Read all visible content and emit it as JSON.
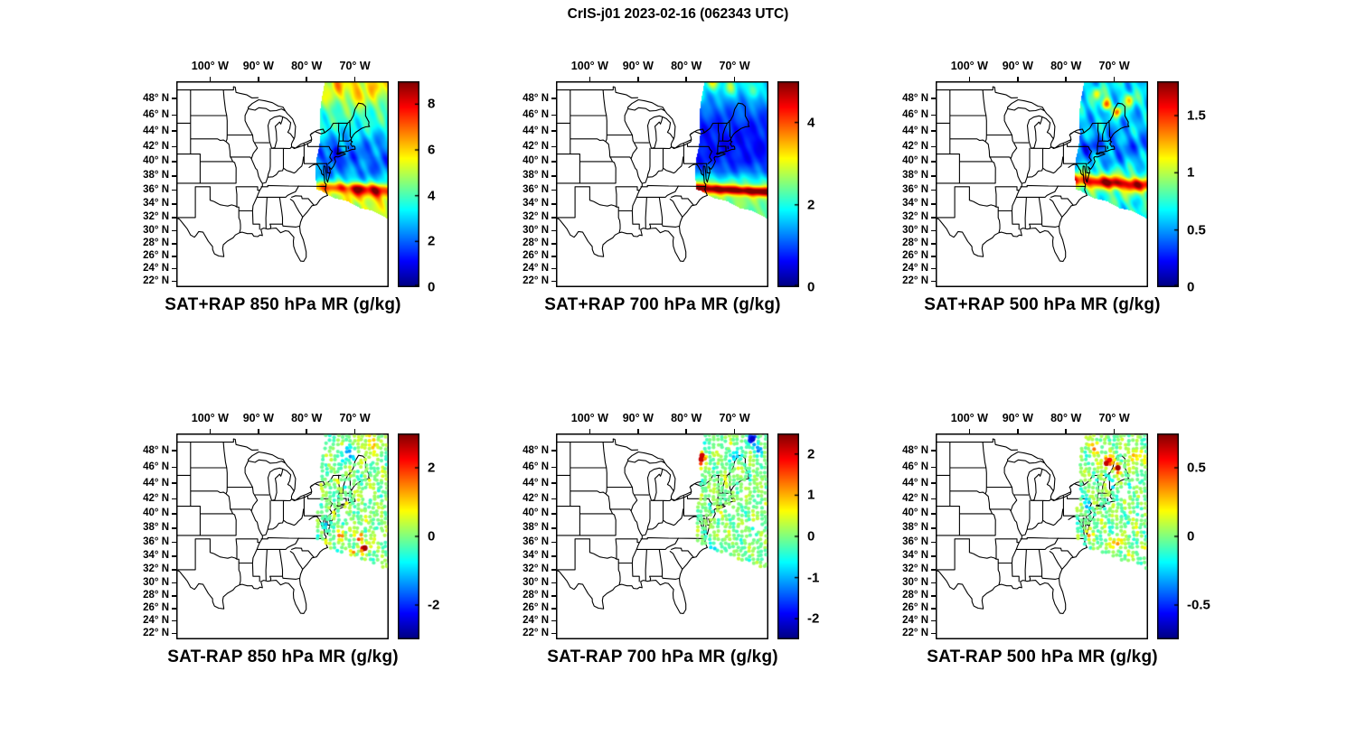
{
  "figure": {
    "title": "CrIS-j01 2023-02-16 (062343 UTC)"
  },
  "colors": {
    "background": "#ffffff",
    "outline": "#000000",
    "text": "#000000",
    "colormap_jet_stops": [
      "#000080",
      "#0000ff",
      "#00ffff",
      "#ffff00",
      "#ff0000",
      "#800000"
    ],
    "colormap_jet_positions": [
      0,
      0.125,
      0.375,
      0.625,
      0.875,
      1
    ]
  },
  "axes": {
    "lon_tick_labels": [
      "100° W",
      "90° W",
      "80° W",
      "70° W"
    ],
    "lon_tick_deg_west": [
      100,
      90,
      80,
      70
    ],
    "lat_tick_labels": [
      "48° N",
      "46° N",
      "44° N",
      "42° N",
      "40° N",
      "38° N",
      "36° N",
      "34° N",
      "32° N",
      "30° N",
      "28° N",
      "26° N",
      "24° N",
      "22° N"
    ],
    "lat_tick_deg_north": [
      48,
      46,
      44,
      42,
      40,
      38,
      36,
      34,
      32,
      30,
      28,
      26,
      24,
      22
    ]
  },
  "chart_data": {
    "type": "heatmap",
    "title": "CrIS-j01 2023-02-16 (062343 UTC)",
    "colormap": "jet",
    "projection": "mercator",
    "map_extent": {
      "lon_west_deg": [
        107,
        63
      ],
      "lat_north_deg": [
        21,
        50
      ]
    },
    "satellite_swath": {
      "description": "Slanted CrIS overpass swath covering the northeastern US and the western Atlantic",
      "lon_west_deg": [
        79,
        62
      ],
      "lat_north_deg": [
        32,
        50
      ]
    },
    "panels": [
      {
        "position": "top-left",
        "title": "SAT+RAP 850 hPa MR (g/kg)",
        "variable": "850 hPa water vapor mixing ratio (satellite + RAP)",
        "units": "g/kg",
        "style": "filled swath",
        "colorbar": {
          "min": 0,
          "max": 9,
          "ticks": [
            0,
            2,
            4,
            6,
            8
          ],
          "tick_labels": [
            "0",
            "2",
            "4",
            "6",
            "8"
          ]
        },
        "features": [
          "high-MR band of 6-9 g/kg along ~36°N off the mid-Atlantic coast",
          "dry dark-blue pocket near New Jersey / New York",
          "2-4 g/kg over most of the rest of the swath"
        ]
      },
      {
        "position": "top-middle",
        "title": "SAT+RAP 700 hPa MR (g/kg)",
        "variable": "700 hPa water vapor mixing ratio (satellite + RAP)",
        "units": "g/kg",
        "style": "filled swath",
        "colorbar": {
          "min": 0,
          "max": 5,
          "ticks": [
            0,
            2,
            4
          ],
          "tick_labels": [
            "0",
            "2",
            "4"
          ]
        },
        "features": [
          "intense dark-red moist band (~5 g/kg) along ~36°N",
          "mostly 0.5-1.5 g/kg elsewhere in the swath"
        ]
      },
      {
        "position": "top-right",
        "title": "SAT+RAP 500 hPa MR (g/kg)",
        "variable": "500 hPa water vapor mixing ratio (satellite + RAP)",
        "units": "g/kg",
        "style": "filled swath",
        "colorbar": {
          "min": 0,
          "max": 1.8,
          "ticks": [
            0,
            0.5,
            1,
            1.5
          ],
          "tick_labels": [
            "0",
            "0.5",
            "1",
            "1.5"
          ]
        },
        "features": [
          "moist band (~1.5 g/kg) near 37°N",
          "patchy maxima over northern New England / Quebec"
        ]
      },
      {
        "position": "bottom-left",
        "title": "SAT-RAP 850 hPa MR (g/kg)",
        "variable": "850 hPa mixing ratio difference (satellite minus RAP)",
        "units": "g/kg",
        "style": "footprint dots",
        "colorbar": {
          "min": -3,
          "max": 3,
          "ticks": [
            -2,
            0,
            2
          ],
          "tick_labels": [
            "-2",
            "0",
            "2"
          ]
        },
        "features": [
          "mostly near-zero (green) differences",
          "positive clusters > 2 g/kg offshore east of the Carolinas",
          "scattered negative (blue) footprints in the north"
        ]
      },
      {
        "position": "bottom-middle",
        "title": "SAT-RAP 700 hPa MR (g/kg)",
        "variable": "700 hPa mixing ratio difference (satellite minus RAP)",
        "units": "g/kg",
        "style": "footprint dots",
        "colorbar": {
          "min": -2.5,
          "max": 2.5,
          "ticks": [
            -2,
            -1,
            0,
            1,
            2
          ],
          "tick_labels": [
            "-2",
            "-1",
            "0",
            "1",
            "2"
          ]
        },
        "features": [
          "near-zero differences over most footprints",
          "small strong-positive (dark red) cluster near eastern Ontario",
          "negative footprints near the northeastern swath edge"
        ]
      },
      {
        "position": "bottom-right",
        "title": "SAT-RAP 500 hPa MR (g/kg)",
        "variable": "500 hPa mixing ratio difference (satellite minus RAP)",
        "units": "g/kg",
        "style": "footprint dots",
        "colorbar": {
          "min": -0.75,
          "max": 0.75,
          "ticks": [
            -0.5,
            0,
            0.5
          ],
          "tick_labels": [
            "-0.5",
            "0",
            "0.5"
          ]
        },
        "features": [
          "positive (red/orange) clusters over Maine / Quebec",
          "scattered positive footprints offshore of the Carolinas",
          "small-magnitude differences elsewhere"
        ]
      }
    ]
  }
}
